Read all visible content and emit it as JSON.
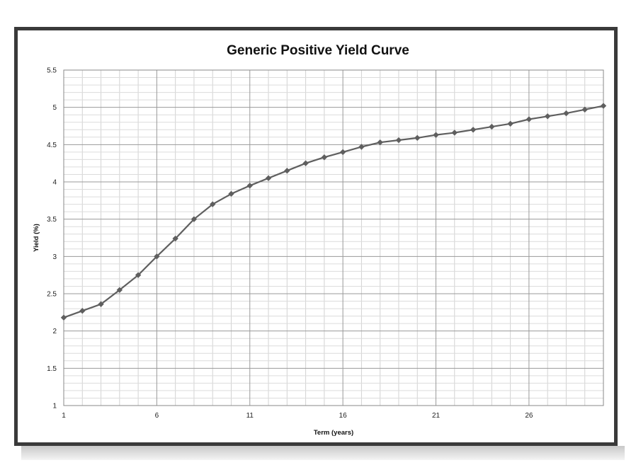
{
  "chart_data": {
    "type": "line",
    "title": "Generic Positive Yield Curve",
    "xlabel": "Term (years)",
    "ylabel": "Yield (%)",
    "x_ticks": [
      "1",
      "6",
      "11",
      "16",
      "21",
      "26"
    ],
    "y_ticks": [
      "1",
      "1.5",
      "2",
      "2.5",
      "3",
      "3.5",
      "4",
      "4.5",
      "5",
      "5.5"
    ],
    "xlim": [
      1,
      30
    ],
    "ylim": [
      1,
      5.5
    ],
    "grid": true,
    "legend": "none",
    "series": [
      {
        "color": "#5f5f5f",
        "marker": "diamond",
        "x": [
          1,
          2,
          3,
          4,
          5,
          6,
          7,
          8,
          9,
          10,
          11,
          12,
          13,
          14,
          15,
          16,
          17,
          18,
          19,
          20,
          21,
          22,
          23,
          24,
          25,
          26,
          27,
          28,
          29,
          30
        ],
        "values": [
          2.18,
          2.27,
          2.36,
          2.55,
          2.75,
          3.0,
          3.24,
          3.5,
          3.7,
          3.84,
          3.95,
          4.05,
          4.15,
          4.25,
          4.33,
          4.4,
          4.47,
          4.53,
          4.56,
          4.59,
          4.63,
          4.66,
          4.7,
          4.74,
          4.78,
          4.84,
          4.88,
          4.92,
          4.97,
          5.02
        ]
      }
    ]
  }
}
